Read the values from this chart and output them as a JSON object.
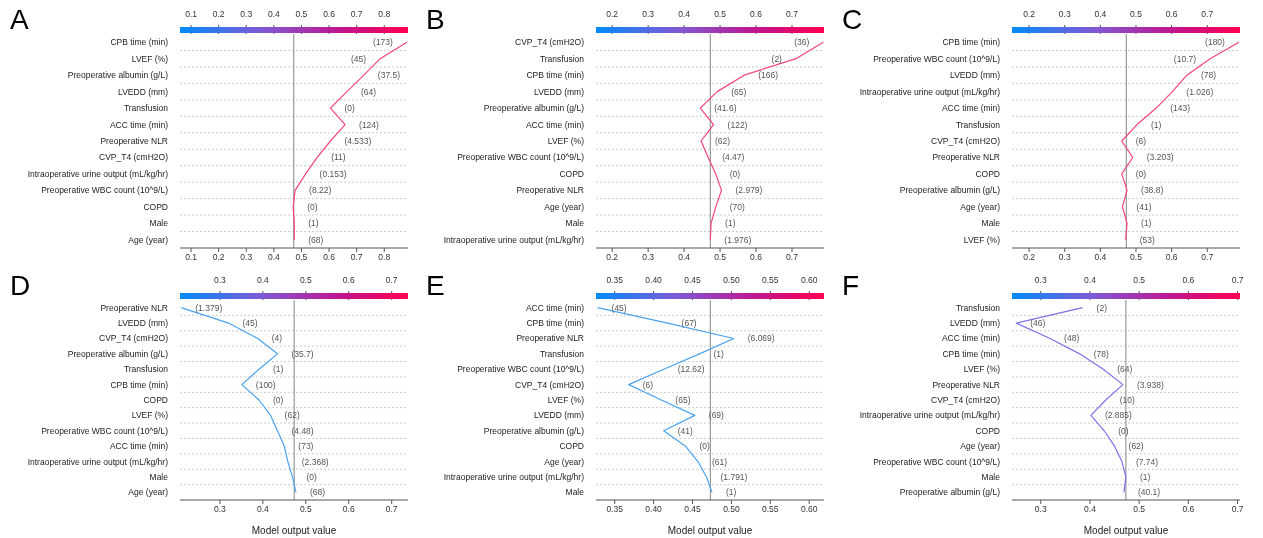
{
  "chart_data": [
    {
      "type": "line",
      "title": "A",
      "orientation": "horizontal",
      "grid": "y",
      "marker": "none",
      "line_style": "solid",
      "categories": [
        "CPB time (min)",
        "LVEF (%)",
        "Preoperative albumin (g/L)",
        "LVEDD (mm)",
        "Transfusion",
        "ACC time (min)",
        "Preoperative NLR",
        "CVP_T4 (cmH2O)",
        "Intraoperative urine output (mL/kg/hr)",
        "Preoperative WBC count (10^9/L)",
        "COPD",
        "Male",
        "Age (year)"
      ],
      "series": [
        {
          "color": "#f2457e",
          "values": [
            0.882,
            0.785,
            0.726,
            0.665,
            0.605,
            0.658,
            0.605,
            0.557,
            0.515,
            0.477,
            0.47,
            0.474,
            0.474
          ]
        }
      ],
      "annotations": [
        {
          "text": "(173)",
          "x": 0.882,
          "y": "CPB time (min)"
        },
        {
          "text": "(45)",
          "x": 0.785,
          "y": "LVEF (%)"
        },
        {
          "text": "(37.5)",
          "x": 0.726,
          "y": "Preoperative albumin (g/L)"
        },
        {
          "text": "(64)",
          "x": 0.665,
          "y": "LVEDD (mm)"
        },
        {
          "text": "(0)",
          "x": 0.605,
          "y": "Transfusion"
        },
        {
          "text": "(124)",
          "x": 0.658,
          "y": "ACC time (min)"
        },
        {
          "text": "(4.533)",
          "x": 0.605,
          "y": "Preoperative NLR"
        },
        {
          "text": "(11)",
          "x": 0.557,
          "y": "CVP_T4 (cmH2O)"
        },
        {
          "text": "(0.153)",
          "x": 0.515,
          "y": "Intraoperative urine output (mL/kg/hr)"
        },
        {
          "text": "(8.22)",
          "x": 0.477,
          "y": "Preoperative WBC count (10^9/L)"
        },
        {
          "text": "(0)",
          "x": 0.47,
          "y": "COPD"
        },
        {
          "text": "(1)",
          "x": 0.474,
          "y": "Male"
        },
        {
          "text": "(68)",
          "x": 0.474,
          "y": "Age (year)"
        }
      ],
      "xlim": [
        0.06,
        0.886
      ],
      "xticks": [
        0.1,
        0.2,
        0.3,
        0.4,
        0.5,
        0.6,
        0.7,
        0.8
      ],
      "x2lim": [
        0.06,
        0.886
      ],
      "x2ticks": [
        0.1,
        0.2,
        0.3,
        0.4,
        0.5,
        0.6,
        0.7,
        0.8
      ],
      "ref_lines": [
        {
          "axis": "x",
          "value": 0.472,
          "color": "#999999"
        }
      ]
    },
    {
      "type": "line",
      "title": "B",
      "orientation": "horizontal",
      "grid": "y",
      "marker": "none",
      "line_style": "solid",
      "categories": [
        "CVP_T4 (cmH2O)",
        "Transfusion",
        "CPB time (min)",
        "LVEDD (mm)",
        "Preoperative albumin (g/L)",
        "ACC time (min)",
        "LVEF (%)",
        "Preoperative WBC count (10^9/L)",
        "COPD",
        "Preoperative NLR",
        "Age (year)",
        "Male",
        "Intraoperative urine output (mL/kg/hr)"
      ],
      "series": [
        {
          "color": "#f2457e",
          "values": [
            0.787,
            0.711,
            0.567,
            0.492,
            0.445,
            0.482,
            0.447,
            0.467,
            0.488,
            0.504,
            0.488,
            0.475,
            0.473
          ]
        }
      ],
      "annotations": [
        {
          "text": "(36)",
          "x": 0.787,
          "y": "CVP_T4 (cmH2O)"
        },
        {
          "text": "(2)",
          "x": 0.711,
          "y": "Transfusion"
        },
        {
          "text": "(166)",
          "x": 0.567,
          "y": "CPB time (min)"
        },
        {
          "text": "(65)",
          "x": 0.492,
          "y": "LVEDD (mm)"
        },
        {
          "text": "(41.6)",
          "x": 0.445,
          "y": "Preoperative albumin (g/L)"
        },
        {
          "text": "(122)",
          "x": 0.482,
          "y": "ACC time (min)"
        },
        {
          "text": "(62)",
          "x": 0.447,
          "y": "LVEF (%)"
        },
        {
          "text": "(4.47)",
          "x": 0.467,
          "y": "Preoperative WBC count (10^9/L)"
        },
        {
          "text": "(0)",
          "x": 0.488,
          "y": "COPD"
        },
        {
          "text": "(2.979)",
          "x": 0.504,
          "y": "Preoperative NLR"
        },
        {
          "text": "(70)",
          "x": 0.488,
          "y": "Age (year)"
        },
        {
          "text": "(1)",
          "x": 0.475,
          "y": "Male"
        },
        {
          "text": "(1.976)",
          "x": 0.473,
          "y": "Intraoperative urine output (mL/kg/hr)"
        }
      ],
      "xlim": [
        0.155,
        0.789
      ],
      "xticks": [
        0.2,
        0.3,
        0.4,
        0.5,
        0.6,
        0.7
      ],
      "x2lim": [
        0.155,
        0.789
      ],
      "x2ticks": [
        0.2,
        0.3,
        0.4,
        0.5,
        0.6,
        0.7
      ],
      "ref_lines": [
        {
          "axis": "x",
          "value": 0.473,
          "color": "#999999"
        }
      ]
    },
    {
      "type": "line",
      "title": "C",
      "orientation": "horizontal",
      "grid": "y",
      "marker": "none",
      "line_style": "solid",
      "categories": [
        "CPB time (min)",
        "Preoperative WBC count (10^9/L)",
        "LVEDD (mm)",
        "Intraoperative urine output (mL/kg/hr)",
        "ACC time (min)",
        "Transfusion",
        "CVP_T4 (cmH2O)",
        "Preoperative NLR",
        "COPD",
        "Preoperative albumin (g/L)",
        "Age (year)",
        "Male",
        "LVEF (%)"
      ],
      "series": [
        {
          "color": "#f2457e",
          "values": [
            0.789,
            0.708,
            0.643,
            0.602,
            0.557,
            0.503,
            0.46,
            0.491,
            0.46,
            0.475,
            0.462,
            0.475,
            0.471
          ]
        }
      ],
      "annotations": [
        {
          "text": "(180)",
          "x": 0.789,
          "y": "CPB time (min)"
        },
        {
          "text": "(10.7)",
          "x": 0.708,
          "y": "Preoperative WBC count (10^9/L)"
        },
        {
          "text": "(78)",
          "x": 0.643,
          "y": "LVEDD (mm)"
        },
        {
          "text": "(1.026)",
          "x": 0.602,
          "y": "Intraoperative urine output (mL/kg/hr)"
        },
        {
          "text": "(143)",
          "x": 0.557,
          "y": "ACC time (min)"
        },
        {
          "text": "(1)",
          "x": 0.503,
          "y": "Transfusion"
        },
        {
          "text": "(6)",
          "x": 0.46,
          "y": "CVP_T4 (cmH2O)"
        },
        {
          "text": "(3.203)",
          "x": 0.491,
          "y": "Preoperative NLR"
        },
        {
          "text": "(0)",
          "x": 0.46,
          "y": "COPD"
        },
        {
          "text": "(38.8)",
          "x": 0.475,
          "y": "Preoperative albumin (g/L)"
        },
        {
          "text": "(41)",
          "x": 0.462,
          "y": "Age (year)"
        },
        {
          "text": "(1)",
          "x": 0.475,
          "y": "Male"
        },
        {
          "text": "(53)",
          "x": 0.471,
          "y": "LVEF (%)"
        }
      ],
      "xlim": [
        0.152,
        0.792
      ],
      "xticks": [
        0.2,
        0.3,
        0.4,
        0.5,
        0.6,
        0.7
      ],
      "x2lim": [
        0.152,
        0.792
      ],
      "x2ticks": [
        0.2,
        0.3,
        0.4,
        0.5,
        0.6,
        0.7
      ],
      "ref_lines": [
        {
          "axis": "x",
          "value": 0.473,
          "color": "#999999"
        }
      ]
    },
    {
      "type": "line",
      "title": "D",
      "xlabel": "Model output value",
      "orientation": "horizontal",
      "grid": "y",
      "marker": "none",
      "line_style": "solid",
      "categories": [
        "Preoperative NLR",
        "LVEDD (mm)",
        "CVP_T4 (cmH2O)",
        "Preoperative albumin (g/L)",
        "Transfusion",
        "CPB time (min)",
        "COPD",
        "LVEF (%)",
        "Preoperative WBC count (10^9/L)",
        "ACC time (min)",
        "Intraoperative urine output (mL/kg/hr)",
        "Male",
        "Age (year)"
      ],
      "series": [
        {
          "color": "#4aa3f0",
          "values": [
            0.21,
            0.32,
            0.388,
            0.434,
            0.391,
            0.351,
            0.391,
            0.418,
            0.434,
            0.45,
            0.458,
            0.469,
            0.477
          ]
        }
      ],
      "annotations": [
        {
          "text": "(1.379)",
          "x": 0.21,
          "y": "Preoperative NLR"
        },
        {
          "text": "(45)",
          "x": 0.32,
          "y": "LVEDD (mm)"
        },
        {
          "text": "(4)",
          "x": 0.388,
          "y": "CVP_T4 (cmH2O)"
        },
        {
          "text": "(35.7)",
          "x": 0.434,
          "y": "Preoperative albumin (g/L)"
        },
        {
          "text": "(1)",
          "x": 0.391,
          "y": "Transfusion"
        },
        {
          "text": "(100)",
          "x": 0.351,
          "y": "CPB time (min)"
        },
        {
          "text": "(0)",
          "x": 0.391,
          "y": "COPD"
        },
        {
          "text": "(62)",
          "x": 0.418,
          "y": "LVEF (%)"
        },
        {
          "text": "(4.48)",
          "x": 0.434,
          "y": "Preoperative WBC count (10^9/L)"
        },
        {
          "text": "(73)",
          "x": 0.45,
          "y": "ACC time (min)"
        },
        {
          "text": "(2.368)",
          "x": 0.458,
          "y": "Intraoperative urine output (mL/kg/hr)"
        },
        {
          "text": "(0)",
          "x": 0.469,
          "y": "Male"
        },
        {
          "text": "(68)",
          "x": 0.477,
          "y": "Age (year)"
        }
      ],
      "xlim": [
        0.207,
        0.738
      ],
      "xticks": [
        0.3,
        0.4,
        0.5,
        0.6,
        0.7
      ],
      "x2lim": [
        0.207,
        0.738
      ],
      "x2ticks": [
        0.3,
        0.4,
        0.5,
        0.6,
        0.7
      ],
      "ref_lines": [
        {
          "axis": "x",
          "value": 0.473,
          "color": "#999999"
        }
      ]
    },
    {
      "type": "line",
      "title": "E",
      "xlabel": "Model output value",
      "orientation": "horizontal",
      "grid": "y",
      "marker": "none",
      "line_style": "solid",
      "categories": [
        "ACC time (min)",
        "CPB time (min)",
        "Preoperative NLR",
        "Transfusion",
        "Preoperative WBC count (10^9/L)",
        "CVP_T4 (cmH2O)",
        "LVEF (%)",
        "LVEDD (mm)",
        "Preoperative albumin (g/L)",
        "COPD",
        "Age (year)",
        "Intraoperative urine output (mL/kg/hr)",
        "Male"
      ],
      "series": [
        {
          "color": "#4aa3f0",
          "values": [
            0.328,
            0.418,
            0.503,
            0.459,
            0.413,
            0.368,
            0.41,
            0.453,
            0.413,
            0.441,
            0.457,
            0.468,
            0.475
          ]
        }
      ],
      "annotations": [
        {
          "text": "(45)",
          "x": 0.328,
          "y": "ACC time (min)"
        },
        {
          "text": "(67)",
          "x": 0.418,
          "y": "CPB time (min)"
        },
        {
          "text": "(6.069)",
          "x": 0.503,
          "y": "Preoperative NLR"
        },
        {
          "text": "(1)",
          "x": 0.459,
          "y": "Transfusion"
        },
        {
          "text": "(12.62)",
          "x": 0.413,
          "y": "Preoperative WBC count (10^9/L)"
        },
        {
          "text": "(6)",
          "x": 0.368,
          "y": "CVP_T4 (cmH2O)"
        },
        {
          "text": "(65)",
          "x": 0.41,
          "y": "LVEF (%)"
        },
        {
          "text": "(69)",
          "x": 0.453,
          "y": "LVEDD (mm)"
        },
        {
          "text": "(41)",
          "x": 0.413,
          "y": "Preoperative albumin (g/L)"
        },
        {
          "text": "(0)",
          "x": 0.441,
          "y": "COPD"
        },
        {
          "text": "(61)",
          "x": 0.457,
          "y": "Age (year)"
        },
        {
          "text": "(1.791)",
          "x": 0.468,
          "y": "Intraoperative urine output (mL/kg/hr)"
        },
        {
          "text": "(1)",
          "x": 0.475,
          "y": "Male"
        }
      ],
      "xlim": [
        0.326,
        0.619
      ],
      "xticks": [
        0.35,
        {
          "value": 0.4,
          "label": "0.40"
        },
        0.45,
        {
          "value": 0.5,
          "label": "0.50"
        },
        0.55,
        {
          "value": 0.6,
          "label": "0.60"
        }
      ],
      "x2lim": [
        0.326,
        0.619
      ],
      "x2ticks": [
        0.35,
        {
          "value": 0.4,
          "label": "0.40"
        },
        0.45,
        {
          "value": 0.5,
          "label": "0.50"
        },
        0.55,
        {
          "value": 0.6,
          "label": "0.60"
        }
      ],
      "ref_lines": [
        {
          "axis": "x",
          "value": 0.473,
          "color": "#999999"
        }
      ]
    },
    {
      "type": "line",
      "title": "F",
      "xlabel": "Model output value",
      "orientation": "horizontal",
      "grid": "y",
      "marker": "none",
      "line_style": "solid",
      "categories": [
        "Transfusion",
        "LVEDD (mm)",
        "ACC time (min)",
        "CPB time (min)",
        "LVEF (%)",
        "Preoperative NLR",
        "CVP_T4 (cmH2O)",
        "Intraoperative urine output (mL/kg/hr)",
        "COPD",
        "Age (year)",
        "Preoperative WBC count (10^9/L)",
        "Male",
        "Preoperative albumin (g/L)"
      ],
      "series": [
        {
          "color": "#7d72e8",
          "values": [
            0.385,
            0.25,
            0.319,
            0.379,
            0.427,
            0.467,
            0.432,
            0.402,
            0.429,
            0.45,
            0.465,
            0.473,
            0.469
          ]
        }
      ],
      "annotations": [
        {
          "text": "(2)",
          "x": 0.385,
          "y": "Transfusion"
        },
        {
          "text": "(46)",
          "x": 0.25,
          "y": "LVEDD (mm)"
        },
        {
          "text": "(48)",
          "x": 0.319,
          "y": "ACC time (min)"
        },
        {
          "text": "(78)",
          "x": 0.379,
          "y": "CPB time (min)"
        },
        {
          "text": "(64)",
          "x": 0.427,
          "y": "LVEF (%)"
        },
        {
          "text": "(3.938)",
          "x": 0.467,
          "y": "Preoperative NLR"
        },
        {
          "text": "(10)",
          "x": 0.432,
          "y": "CVP_T4 (cmH2O)"
        },
        {
          "text": "(2.885)",
          "x": 0.402,
          "y": "Intraoperative urine output (mL/kg/hr)"
        },
        {
          "text": "(0)",
          "x": 0.429,
          "y": "COPD"
        },
        {
          "text": "(62)",
          "x": 0.45,
          "y": "Age (year)"
        },
        {
          "text": "(7.74)",
          "x": 0.465,
          "y": "Preoperative WBC count (10^9/L)"
        },
        {
          "text": "(1)",
          "x": 0.473,
          "y": "Male"
        },
        {
          "text": "(40.1)",
          "x": 0.469,
          "y": "Preoperative albumin (g/L)"
        }
      ],
      "xlim": [
        0.2415,
        0.705
      ],
      "xticks": [
        0.3,
        0.4,
        0.5,
        0.6,
        0.7
      ],
      "x2lim": [
        0.2415,
        0.705
      ],
      "x2ticks": [
        0.3,
        0.4,
        0.5,
        0.6,
        0.7
      ],
      "ref_lines": [
        {
          "axis": "x",
          "value": 0.473,
          "color": "#999999"
        }
      ]
    }
  ]
}
